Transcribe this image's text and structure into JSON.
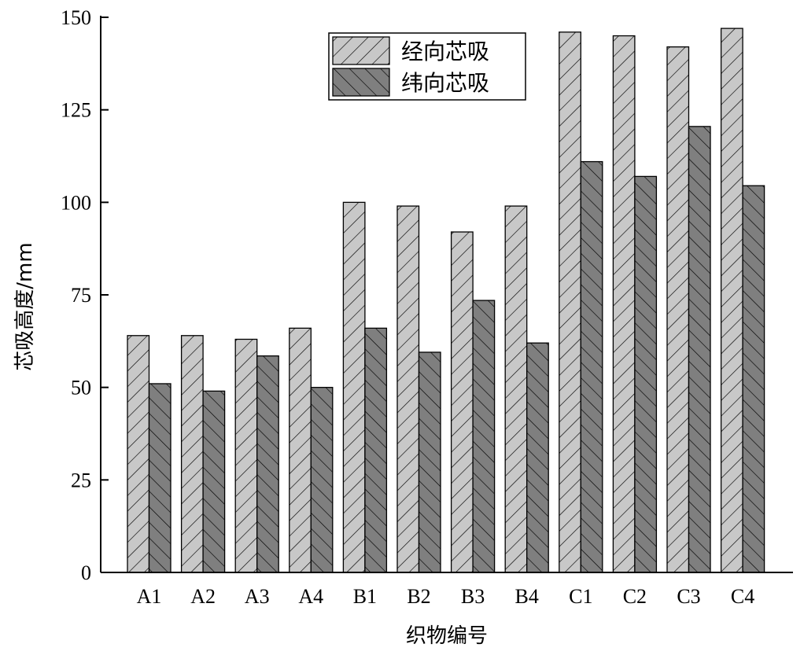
{
  "chart_data": {
    "type": "bar",
    "title": "",
    "xlabel": "织物编号",
    "ylabel": "芯吸高度/mm",
    "categories": [
      "A1",
      "A2",
      "A3",
      "A4",
      "B1",
      "B2",
      "B3",
      "B4",
      "C1",
      "C2",
      "C3",
      "C4"
    ],
    "series": [
      {
        "name": "经向芯吸",
        "color": "#c8c8c8",
        "pattern": "forward-hatch",
        "values": [
          64,
          64,
          63,
          66,
          100,
          99,
          92,
          99,
          146,
          145,
          142,
          147
        ]
      },
      {
        "name": "纬向芯吸",
        "color": "#7f7f7f",
        "pattern": "backward-hatch",
        "values": [
          51,
          49,
          58.5,
          50,
          66,
          59.5,
          73.5,
          62,
          111,
          107,
          120.5,
          104.5
        ]
      }
    ],
    "ylim": [
      0,
      150
    ],
    "yticks": [
      0,
      25,
      50,
      75,
      100,
      125,
      150
    ],
    "grid": false,
    "legend_position": "top-center"
  }
}
